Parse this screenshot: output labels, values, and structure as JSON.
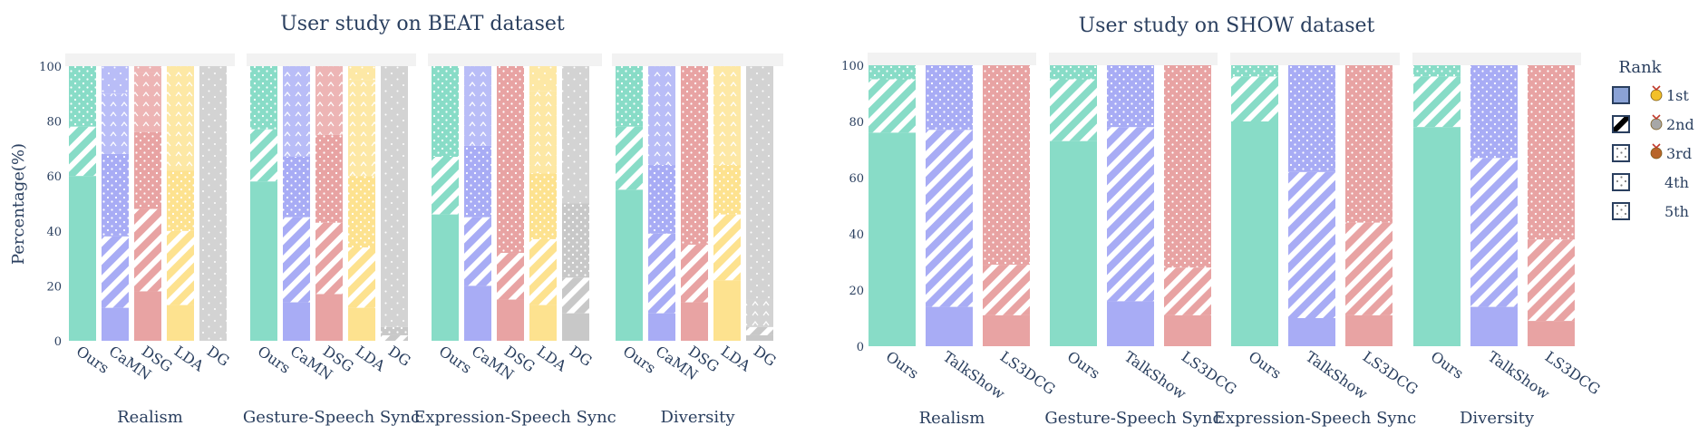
{
  "chart_data": [
    {
      "type": "bar",
      "stacked": true,
      "title": "User study on BEAT dataset",
      "ylabel": "Percentage(%)",
      "ylim": [
        0,
        100
      ],
      "yticks": [
        0,
        20,
        40,
        60,
        80,
        100
      ],
      "rank_labels": [
        "1st",
        "2nd",
        "3rd",
        "4th",
        "5th"
      ],
      "method_colors": {
        "Ours": "#88dcc7",
        "CaMN": "#a8acf5",
        "DSG": "#e8a3a3",
        "LDA": "#fde28f",
        "DG": "#c8c8c8"
      },
      "panels": [
        {
          "name": "Realism",
          "methods": [
            "Ours",
            "CaMN",
            "DSG",
            "LDA",
            "DG"
          ],
          "values": [
            [
              60,
              18,
              22,
              0,
              0
            ],
            [
              12,
              26,
              30,
              22,
              10
            ],
            [
              18,
              30,
              28,
              22,
              2
            ],
            [
              13,
              27,
              22,
              38,
              0
            ],
            [
              0,
              0,
              0,
              0,
              100
            ]
          ]
        },
        {
          "name": "Gesture-Speech Sync",
          "methods": [
            "Ours",
            "CaMN",
            "DSG",
            "LDA",
            "DG"
          ],
          "values": [
            [
              58,
              19,
              23,
              0,
              0
            ],
            [
              14,
              31,
              22,
              33,
              0
            ],
            [
              17,
              26,
              32,
              25,
              0
            ],
            [
              12,
              22,
              26,
              35,
              5
            ],
            [
              0,
              2,
              3,
              0,
              95
            ]
          ]
        },
        {
          "name": "Expression-Speech Sync",
          "methods": [
            "Ours",
            "CaMN",
            "DSG",
            "LDA",
            "DG"
          ],
          "values": [
            [
              46,
              21,
              33,
              0,
              0
            ],
            [
              20,
              25,
              26,
              29,
              0
            ],
            [
              15,
              17,
              68,
              0,
              0
            ],
            [
              13,
              24,
              24,
              30,
              9
            ],
            [
              10,
              13,
              27,
              0,
              50
            ]
          ]
        },
        {
          "name": "Diversity",
          "methods": [
            "Ours",
            "CaMN",
            "DSG",
            "LDA",
            "DG"
          ],
          "values": [
            [
              55,
              23,
              22,
              0,
              0
            ],
            [
              10,
              29,
              25,
              36,
              0
            ],
            [
              14,
              21,
              65,
              0,
              0
            ],
            [
              22,
              24,
              18,
              36,
              0
            ],
            [
              2,
              3,
              0,
              10,
              85
            ]
          ]
        }
      ]
    },
    {
      "type": "bar",
      "stacked": true,
      "title": "User study on SHOW dataset",
      "ylabel": "",
      "ylim": [
        0,
        100
      ],
      "yticks": [
        0,
        20,
        40,
        60,
        80,
        100
      ],
      "rank_labels": [
        "1st",
        "2nd",
        "3rd"
      ],
      "method_colors": {
        "Ours": "#88dcc7",
        "TalkShow": "#a8acf5",
        "LS3DCG": "#e8a3a3"
      },
      "panels": [
        {
          "name": "Realism",
          "methods": [
            "Ours",
            "TalkShow",
            "LS3DCG"
          ],
          "values": [
            [
              76,
              19,
              5
            ],
            [
              14,
              63,
              23
            ],
            [
              11,
              18,
              71
            ]
          ]
        },
        {
          "name": "Gesture-Speech Sync",
          "methods": [
            "Ours",
            "TalkShow",
            "LS3DCG"
          ],
          "values": [
            [
              73,
              22,
              5
            ],
            [
              16,
              62,
              22
            ],
            [
              11,
              17,
              72
            ]
          ]
        },
        {
          "name": "Expression-Speech Sync",
          "methods": [
            "Ours",
            "TalkShow",
            "LS3DCG"
          ],
          "values": [
            [
              80,
              16,
              4
            ],
            [
              10,
              52,
              38
            ],
            [
              11,
              33,
              56
            ]
          ]
        },
        {
          "name": "Diversity",
          "methods": [
            "Ours",
            "TalkShow",
            "LS3DCG"
          ],
          "values": [
            [
              78,
              18,
              4
            ],
            [
              14,
              53,
              33
            ],
            [
              9,
              29,
              62
            ]
          ]
        }
      ]
    }
  ],
  "legend": {
    "title": "Rank",
    "items": [
      "1st",
      "2nd",
      "3rd",
      "4th",
      "5th"
    ],
    "box_color": "#2a3f5f",
    "medal_colors": [
      "#f2c029",
      "#a7a7a7",
      "#b8652a"
    ]
  }
}
